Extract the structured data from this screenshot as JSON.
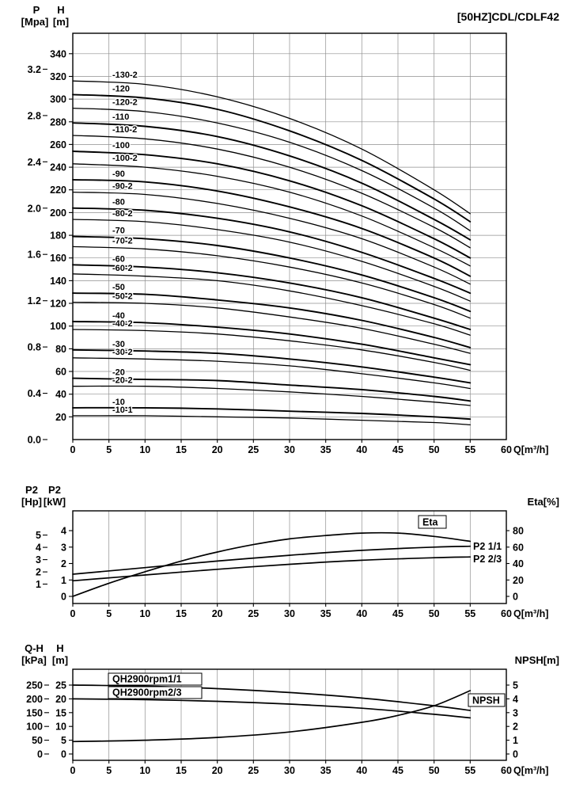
{
  "page": {
    "title": "[50HZ]CDL/CDLF42"
  },
  "chart_data": [
    {
      "id": "head-curves",
      "type": "line",
      "title": "[50HZ]CDL/CDLF42",
      "x": {
        "unit": "Q[m³/h]",
        "range": [
          0,
          60
        ],
        "ticks": [
          0,
          5,
          10,
          15,
          20,
          25,
          30,
          35,
          40,
          45,
          50,
          55
        ],
        "end_tick": 60
      },
      "y_pressure": {
        "label": "P",
        "unit": "[Mpa]",
        "ticks": [
          0.0,
          0.4,
          0.8,
          1.2,
          1.6,
          2.0,
          2.4,
          2.8,
          3.2
        ]
      },
      "y_head": {
        "label": "H",
        "unit": "[m]",
        "ticks": [
          20,
          40,
          60,
          80,
          100,
          120,
          140,
          160,
          180,
          200,
          220,
          240,
          260,
          280,
          300,
          320,
          340
        ],
        "range": [
          0,
          358
        ]
      },
      "grid": "full",
      "q": [
        0,
        10,
        20,
        30,
        40,
        50,
        55
      ],
      "curves": [
        {
          "label": "-130-2",
          "h": [
            316,
            313,
            302,
            283,
            256,
            220,
            199
          ]
        },
        {
          "label": "-120",
          "h": [
            304,
            301,
            291,
            272,
            246,
            212,
            192
          ]
        },
        {
          "label": "-120-2",
          "h": [
            292,
            289,
            279,
            262,
            237,
            204,
            184
          ]
        },
        {
          "label": "-110",
          "h": [
            279,
            276,
            267,
            250,
            226,
            194,
            176
          ]
        },
        {
          "label": "-110-2",
          "h": [
            268,
            265,
            256,
            240,
            217,
            187,
            169
          ]
        },
        {
          "label": "-100",
          "h": [
            254,
            251,
            243,
            228,
            206,
            177,
            160
          ]
        },
        {
          "label": "-100-2",
          "h": [
            243,
            240,
            232,
            218,
            197,
            169,
            153
          ]
        },
        {
          "label": "-90",
          "h": [
            229,
            227,
            219,
            205,
            186,
            160,
            144
          ]
        },
        {
          "label": "-90-2",
          "h": [
            218,
            216,
            208,
            195,
            177,
            152,
            137
          ]
        },
        {
          "label": "-80",
          "h": [
            204,
            202,
            195,
            183,
            165,
            142,
            129
          ]
        },
        {
          "label": "-80-2",
          "h": [
            194,
            192,
            185,
            174,
            157,
            135,
            122
          ]
        },
        {
          "label": "-70",
          "h": [
            179,
            177,
            171,
            160,
            145,
            125,
            113
          ]
        },
        {
          "label": "-70-2",
          "h": [
            170,
            168,
            162,
            152,
            138,
            119,
            107
          ]
        },
        {
          "label": "-60",
          "h": [
            154,
            152,
            147,
            138,
            125,
            107,
            97
          ]
        },
        {
          "label": "-60-2",
          "h": [
            146,
            144,
            140,
            131,
            118,
            102,
            92
          ]
        },
        {
          "label": "-50",
          "h": [
            129,
            128,
            123,
            116,
            105,
            90,
            81
          ]
        },
        {
          "label": "-50-2",
          "h": [
            121,
            120,
            116,
            108,
            98,
            84,
            76
          ]
        },
        {
          "label": "-40",
          "h": [
            104,
            103,
            99,
            93,
            84,
            72,
            66
          ]
        },
        {
          "label": "-40-2",
          "h": [
            97,
            96,
            93,
            87,
            79,
            68,
            61
          ]
        },
        {
          "label": "-30",
          "h": [
            79,
            78,
            76,
            71,
            64,
            55,
            50
          ]
        },
        {
          "label": "-30-2",
          "h": [
            72,
            71,
            69,
            65,
            58,
            50,
            45
          ]
        },
        {
          "label": "-20",
          "h": [
            54,
            53,
            52,
            48,
            44,
            38,
            34
          ]
        },
        {
          "label": "-20-2",
          "h": [
            47,
            47,
            45,
            42,
            38,
            33,
            30
          ]
        },
        {
          "label": "-10",
          "h": [
            28,
            28,
            27,
            25,
            23,
            20,
            18
          ]
        },
        {
          "label": "-10-1",
          "h": [
            21,
            21,
            20,
            19,
            17,
            15,
            13
          ]
        }
      ]
    },
    {
      "id": "power-eta",
      "type": "line",
      "x": {
        "unit": "Q[m³/h]",
        "range": [
          0,
          60
        ],
        "ticks": [
          0,
          5,
          10,
          15,
          20,
          25,
          30,
          35,
          40,
          45,
          50,
          55
        ],
        "end_tick": 60
      },
      "y_hp": {
        "label": "P2",
        "unit": "[Hp]",
        "ticks": [
          1,
          2,
          3,
          4,
          5
        ]
      },
      "y_kw": {
        "label": "P2",
        "unit": "[kW]",
        "ticks": [
          0,
          1,
          2,
          3,
          4
        ]
      },
      "y_eta": {
        "label": "Eta[%]",
        "ticks": [
          0,
          20,
          40,
          60,
          80
        ]
      },
      "grid": "vertical",
      "series": [
        {
          "name": "Eta",
          "axis": "eta",
          "q": [
            0,
            5,
            10,
            15,
            20,
            25,
            30,
            35,
            40,
            45,
            50,
            55
          ],
          "values": [
            0,
            16,
            30,
            43,
            54,
            63,
            70,
            74,
            77,
            77,
            73,
            67
          ]
        },
        {
          "name": "P2 1/1",
          "axis": "kw",
          "q": [
            0,
            10,
            20,
            30,
            40,
            50,
            55
          ],
          "values": [
            1.35,
            1.75,
            2.15,
            2.5,
            2.8,
            3.0,
            3.05
          ]
        },
        {
          "name": "P2 2/3",
          "axis": "kw",
          "q": [
            0,
            10,
            20,
            30,
            40,
            50,
            55
          ],
          "values": [
            0.95,
            1.3,
            1.65,
            1.95,
            2.2,
            2.35,
            2.4
          ]
        }
      ]
    },
    {
      "id": "qh-npsh",
      "type": "line",
      "x": {
        "unit": "Q[m³/h]",
        "range": [
          0,
          60
        ],
        "ticks": [
          0,
          5,
          10,
          15,
          20,
          25,
          30,
          35,
          40,
          45,
          50,
          55
        ],
        "end_tick": 60
      },
      "y_kpa": {
        "label": "Q-H",
        "unit": "[kPa]",
        "ticks": [
          0,
          50,
          100,
          150,
          200,
          250
        ]
      },
      "y_m": {
        "label": "H",
        "unit": "[m]",
        "ticks": [
          0,
          5,
          10,
          15,
          20,
          25
        ]
      },
      "y_npsh": {
        "label": "NPSH[m]",
        "ticks": [
          0,
          1,
          2,
          3,
          4,
          5
        ]
      },
      "grid": "vertical",
      "series": [
        {
          "name": "QH2900rpm1/1",
          "axis": "m",
          "q": [
            0,
            10,
            20,
            30,
            40,
            50,
            55
          ],
          "values": [
            25,
            24.6,
            23.7,
            22.3,
            20.3,
            17.5,
            15.8
          ]
        },
        {
          "name": "QH2900rpm2/3",
          "axis": "m",
          "q": [
            0,
            10,
            20,
            30,
            40,
            50,
            55
          ],
          "values": [
            20,
            19.7,
            19.1,
            18.1,
            16.6,
            14.4,
            13.1
          ]
        },
        {
          "name": "NPSH",
          "axis": "npsh",
          "q": [
            0,
            10,
            20,
            30,
            40,
            45,
            50,
            55
          ],
          "values": [
            0.9,
            1.0,
            1.2,
            1.6,
            2.3,
            2.8,
            3.5,
            4.6
          ]
        }
      ]
    }
  ]
}
